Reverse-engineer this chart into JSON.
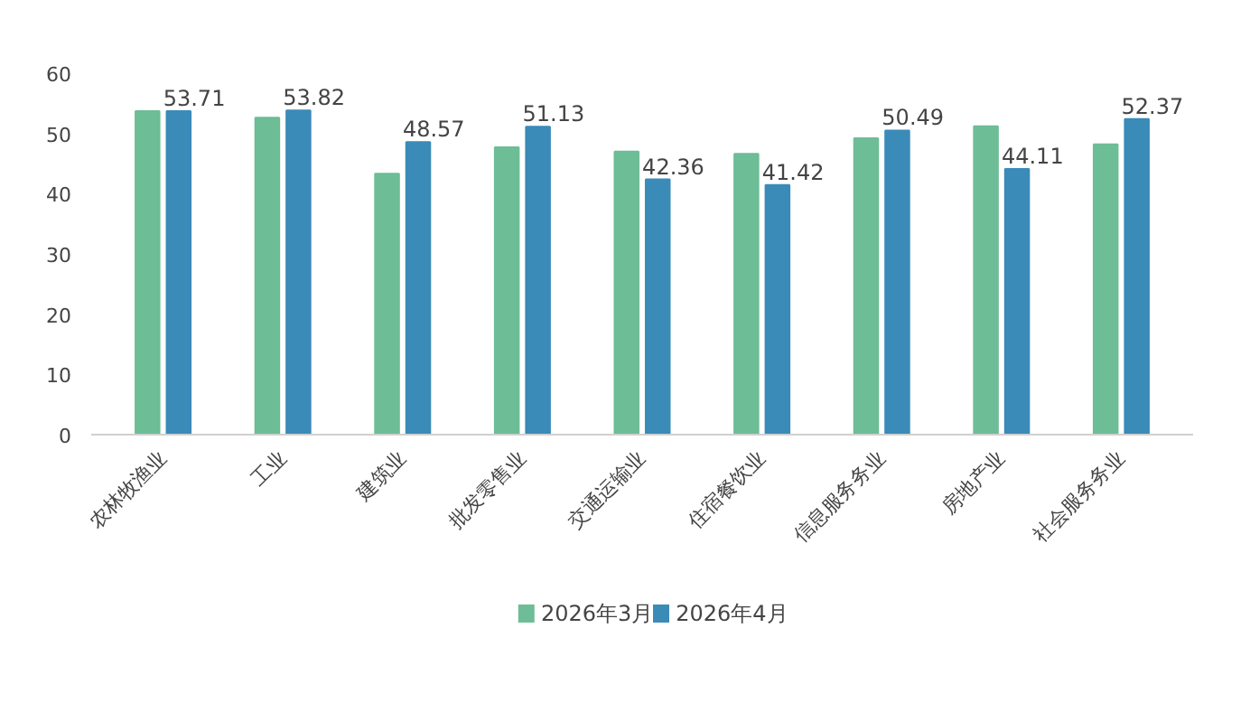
{
  "chart_data": {
    "type": "bar",
    "categories": [
      "农林牧渔业",
      "工业",
      "建筑业",
      "批发零售业",
      "交通运输业",
      "住宿餐饮业",
      "信息服务务业",
      "房地产业",
      "社会服务务业"
    ],
    "series": [
      {
        "name": "2026年3月",
        "color": "#6dbd96",
        "values": [
          53.7,
          52.6,
          43.3,
          47.7,
          47.0,
          46.6,
          49.2,
          51.2,
          48.2
        ]
      },
      {
        "name": "2026年4月",
        "color": "#3a8bb8",
        "values": [
          53.71,
          53.82,
          48.57,
          51.13,
          42.36,
          41.42,
          50.49,
          44.11,
          52.37
        ],
        "value_labels": [
          "53.71",
          "53.82",
          "48.57",
          "51.13",
          "42.36",
          "41.42",
          "50.49",
          "44.11",
          "52.37"
        ]
      }
    ],
    "ylim": [
      0,
      60
    ],
    "yticks": [
      0,
      10,
      20,
      30,
      40,
      50,
      60
    ],
    "grid": false,
    "legend": "bottom"
  }
}
